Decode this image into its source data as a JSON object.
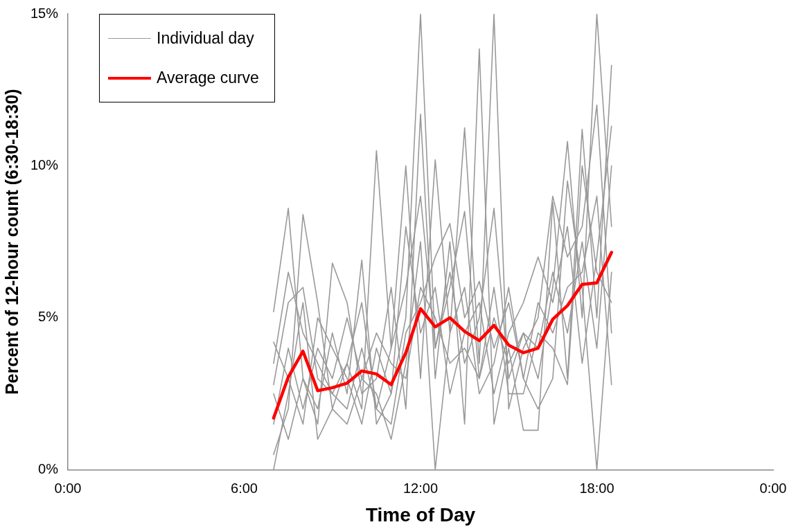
{
  "chart_data": {
    "type": "line",
    "xlabel": "Time of Day",
    "ylabel": "Percent of 12-hour count (6:30-18:30)",
    "x": [
      7,
      7.5,
      8,
      8.5,
      9,
      9.5,
      10,
      10.5,
      11,
      11.5,
      12,
      12.5,
      13,
      13.5,
      14,
      14.5,
      15,
      15.5,
      16,
      16.5,
      17,
      17.5,
      18,
      18.5
    ],
    "xlim": [
      0,
      24
    ],
    "xticks": [
      {
        "value": 0,
        "label": "0:00"
      },
      {
        "value": 6,
        "label": "6:00"
      },
      {
        "value": 12,
        "label": "12:00"
      },
      {
        "value": 18,
        "label": "18:00"
      },
      {
        "value": 24,
        "label": "0:00"
      }
    ],
    "ylim": [
      0,
      15
    ],
    "yticks": [
      {
        "value": 0,
        "label": "0%"
      },
      {
        "value": 5,
        "label": "5%"
      },
      {
        "value": 10,
        "label": "10%"
      },
      {
        "value": 15,
        "label": "15%"
      }
    ],
    "grid": false,
    "legend": "top left",
    "marker": "none",
    "line_style": "solid",
    "series": [
      {
        "name": "Individual day",
        "color": "#999999",
        "values": [
          5.2,
          8.6,
          3.0,
          2.0,
          4.5,
          2.5,
          6.9,
          1.5,
          2.5,
          5.0,
          15,
          4.0,
          6.5,
          3.5,
          5.0,
          8.6,
          3.0,
          4.5,
          3.0,
          6.0,
          10.8,
          5.0,
          15,
          8.0
        ]
      },
      {
        "color": "#999999",
        "values": [
          0.5,
          2.0,
          8.4,
          5.5,
          2.0,
          3.5,
          2.0,
          10.5,
          4.0,
          10.0,
          3.0,
          10.2,
          4.5,
          11.25,
          3.5,
          15,
          2.0,
          4.0,
          5.0,
          9.0,
          7.0,
          8.0,
          12.0,
          4.5
        ]
      },
      {
        "color": "#999999",
        "values": [
          2.5,
          1.0,
          3.0,
          1.5,
          6.8,
          5.5,
          2.5,
          3.0,
          6.0,
          2.0,
          11.7,
          3.0,
          7.5,
          1.5,
          13.85,
          1.5,
          4.0,
          1.3,
          1.3,
          8.8,
          3.0,
          11.2,
          5.0,
          13.3
        ]
      },
      {
        "color": "#999999",
        "values": [
          3.5,
          6.5,
          4.5,
          3.5,
          2.5,
          2.0,
          4.0,
          2.0,
          1.5,
          4.5,
          5.5,
          7.0,
          8.1,
          5.0,
          6.2,
          4.0,
          5.5,
          3.0,
          5.5,
          4.5,
          6.0,
          6.5,
          9.0,
          2.8
        ]
      },
      {
        "color": "#999999",
        "values": [
          1.5,
          4.0,
          2.0,
          4.0,
          3.0,
          5.0,
          3.0,
          4.5,
          3.5,
          3.0,
          6.0,
          5.0,
          3.5,
          4.0,
          3.0,
          5.0,
          3.5,
          4.5,
          4.0,
          6.5,
          4.5,
          7.5,
          4.0,
          10.0
        ]
      },
      {
        "color": "#999999",
        "values": [
          0,
          2.5,
          5.5,
          1.0,
          2.0,
          1.5,
          3.0,
          2.5,
          1.0,
          3.5,
          7.5,
          0,
          4.5,
          6.0,
          2.5,
          3.5,
          6.0,
          3.0,
          2.0,
          3.0,
          9.5,
          6.0,
          0,
          6.5
        ]
      },
      {
        "color": "#999999",
        "values": [
          4.2,
          3.0,
          1.5,
          5.0,
          4.0,
          3.0,
          1.5,
          4.0,
          2.5,
          8.0,
          4.5,
          6.0,
          2.5,
          4.5,
          5.5,
          2.5,
          4.5,
          5.5,
          7.0,
          5.5,
          8.0,
          3.5,
          7.0,
          11.3
        ]
      },
      {
        "color": "#999999",
        "values": [
          2.8,
          5.5,
          6.0,
          3.0,
          2.5,
          3.5,
          5.5,
          2.0,
          4.0,
          6.0,
          9.0,
          4.0,
          6.0,
          8.5,
          3.0,
          6.0,
          2.5,
          2.5,
          4.5,
          4.0,
          2.8,
          10.0,
          6.5,
          5.5
        ]
      },
      {
        "name": "Average curve",
        "color": "#ff0000",
        "values": [
          1.7,
          3.05,
          3.9,
          2.6,
          2.7,
          2.85,
          3.25,
          3.15,
          2.8,
          3.85,
          5.3,
          4.7,
          5.0,
          4.55,
          4.25,
          4.75,
          4.1,
          3.85,
          4.0,
          4.95,
          5.4,
          6.1,
          6.15,
          7.15
        ]
      }
    ]
  }
}
